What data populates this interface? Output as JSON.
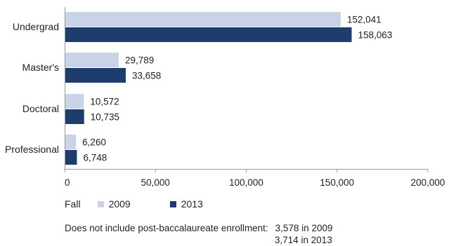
{
  "chart_data": {
    "type": "bar",
    "orientation": "horizontal",
    "categories": [
      "Undergrad",
      "Master's",
      "Doctoral",
      "Professional"
    ],
    "series": [
      {
        "name": "2009",
        "values": [
          152041,
          29789,
          10572,
          6260
        ],
        "labels": [
          "152,041",
          "29,789",
          "10,572",
          "6,260"
        ],
        "color": "#c9d3e8"
      },
      {
        "name": "2013",
        "values": [
          158063,
          33658,
          10735,
          6748
        ],
        "labels": [
          "158,063",
          "33,658",
          "10,735",
          "6,748"
        ],
        "color": "#1c3d6e"
      }
    ],
    "xlim": [
      0,
      200000
    ],
    "xticks": [
      0,
      50000,
      100000,
      150000,
      200000
    ],
    "xtick_labels": [
      "0",
      "50,000",
      "100,000",
      "150,000",
      "200,000"
    ],
    "grid": false,
    "legend_position": "bottom-left"
  },
  "legend": {
    "title": "Fall",
    "items": [
      {
        "label": "2009",
        "color": "#c9d3e8"
      },
      {
        "label": "2013",
        "color": "#1c3d6e"
      }
    ]
  },
  "note": {
    "text": "Does not include post-baccalaureate enrollment:",
    "values": [
      "3,578 in 2009",
      "3,714 in 2013"
    ]
  }
}
